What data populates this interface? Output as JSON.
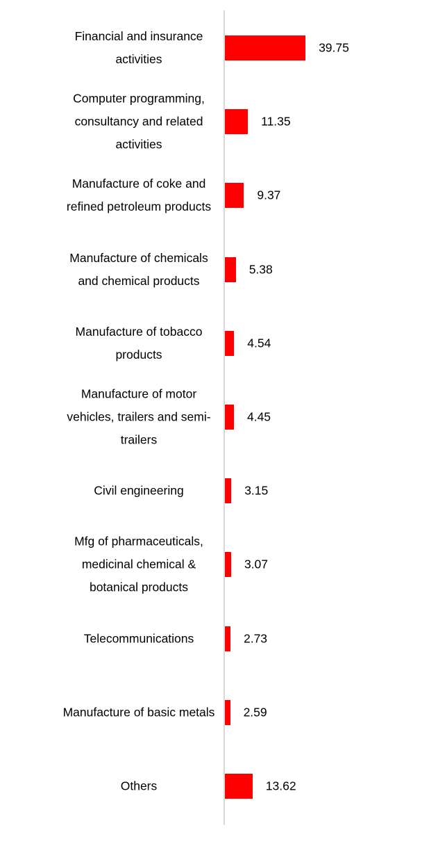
{
  "chart_data": {
    "type": "bar",
    "orientation": "horizontal",
    "color": "#ff0000",
    "categories": [
      "Financial and insurance activities",
      "Computer programming, consultancy and related activities",
      "Manufacture of coke and refined petroleum products",
      "Manufacture of chemicals and chemical products",
      "Manufacture of tobacco products",
      "Manufacture of motor vehicles, trailers and semi-trailers",
      "Civil engineering",
      "Mfg of pharmaceuticals, medicinal chemical & botanical products",
      "Telecommunications",
      "Manufacture of basic metals",
      "Others"
    ],
    "values": [
      39.75,
      11.35,
      9.37,
      5.38,
      4.54,
      4.45,
      3.15,
      3.07,
      2.73,
      2.59,
      13.62
    ]
  }
}
